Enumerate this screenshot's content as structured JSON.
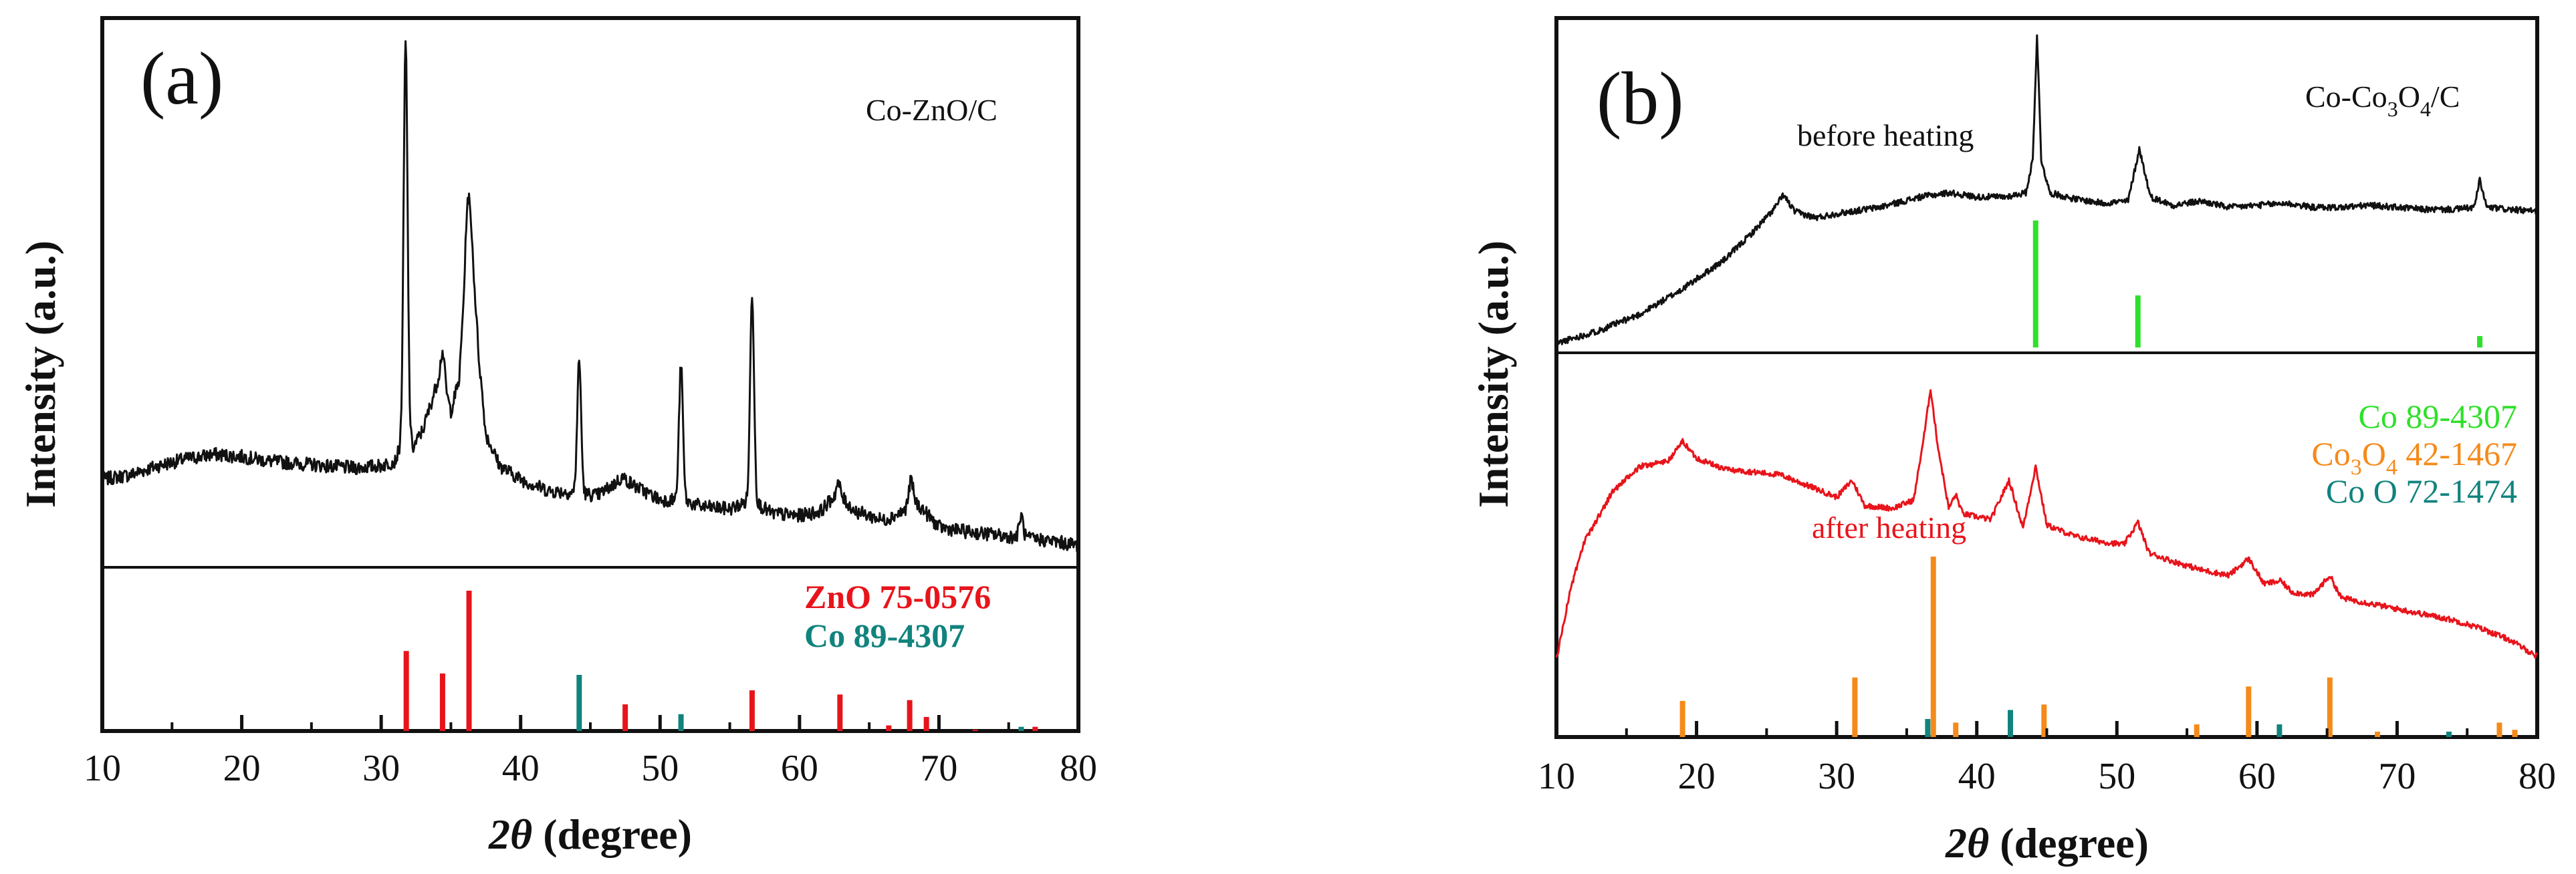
{
  "figure": {
    "colors": {
      "black": "#111111",
      "red": "#e8141b",
      "teal": "#11837d",
      "green": "#2fe02a",
      "orange": "#f58a1a"
    }
  },
  "chart_data": [
    {
      "type": "line",
      "panel_label": "(a)",
      "sample_label": "Co-ZnO/C",
      "xlabel_italic": "2θ",
      "xlabel_rest": " (degree)",
      "ylabel": "Intensity (a.u.)",
      "xlim": [
        10,
        80
      ],
      "xticks": [
        10,
        20,
        30,
        40,
        50,
        60,
        70,
        80
      ],
      "xtick_labels": [
        "10",
        "20",
        "30",
        "40",
        "50",
        "60",
        "70",
        "80"
      ],
      "series": [
        {
          "name": "Co-ZnO/C",
          "color": "#111111",
          "points": [
            [
              10,
              0.36
            ],
            [
              12,
              0.38
            ],
            [
              14,
              0.42
            ],
            [
              16,
              0.45
            ],
            [
              18,
              0.47
            ],
            [
              20,
              0.46
            ],
            [
              22,
              0.44
            ],
            [
              24,
              0.43
            ],
            [
              26,
              0.42
            ],
            [
              28,
              0.41
            ],
            [
              30,
              0.42
            ],
            [
              31,
              0.44
            ],
            [
              31.8,
              0.58
            ],
            [
              32.3,
              0.5
            ],
            [
              33,
              0.58
            ],
            [
              34.1,
              0.8
            ],
            [
              34.5,
              0.78
            ],
            [
              35,
              0.66
            ],
            [
              35.6,
              0.8
            ],
            [
              36.1,
              1.36
            ],
            [
              36.5,
              1.4
            ],
            [
              37,
              0.9
            ],
            [
              37.5,
              0.56
            ],
            [
              38.5,
              0.42
            ],
            [
              40,
              0.36
            ],
            [
              42,
              0.31
            ],
            [
              44,
              0.3
            ],
            [
              45.5,
              0.29
            ],
            [
              46.5,
              0.33
            ],
            [
              47.3,
              0.37
            ],
            [
              48.2,
              0.33
            ],
            [
              50,
              0.27
            ],
            [
              51.5,
              0.27
            ],
            [
              53,
              0.24
            ],
            [
              55,
              0.23
            ],
            [
              56.6,
              0.27
            ],
            [
              58,
              0.21
            ],
            [
              60,
              0.2
            ],
            [
              61.5,
              0.22
            ],
            [
              62.7,
              0.3
            ],
            [
              64,
              0.22
            ],
            [
              66,
              0.18
            ],
            [
              67.5,
              0.22
            ],
            [
              68,
              0.28
            ],
            [
              68.8,
              0.23
            ],
            [
              70,
              0.15
            ],
            [
              72,
              0.13
            ],
            [
              75,
              0.11
            ],
            [
              78,
              0.09
            ],
            [
              80,
              0.07
            ]
          ],
          "peaks": [
            [
              31.75,
              2.28
            ],
            [
              34.4,
              0.92
            ],
            [
              36.25,
              1.6
            ],
            [
              44.2,
              0.88
            ],
            [
              51.5,
              0.86
            ],
            [
              56.6,
              1.18
            ],
            [
              62.8,
              0.34
            ],
            [
              68.0,
              0.36
            ],
            [
              75.9,
              0.2
            ]
          ]
        }
      ],
      "reference_annotation_1": "ZnO 75-0576",
      "reference_annotation_2": "Co  89-4307",
      "references": [
        {
          "name": "ZnO 75-0576",
          "color": "#e8141b",
          "peaks": [
            [
              31.8,
              0.57
            ],
            [
              34.4,
              0.41
            ],
            [
              36.3,
              1.0
            ],
            [
              47.5,
              0.19
            ],
            [
              56.6,
              0.29
            ],
            [
              62.9,
              0.26
            ],
            [
              66.4,
              0.04
            ],
            [
              67.9,
              0.22
            ],
            [
              69.1,
              0.1
            ],
            [
              72.6,
              0.01
            ],
            [
              76.9,
              0.03
            ]
          ]
        },
        {
          "name": "Co 89-4307",
          "color": "#11837d",
          "peaks": [
            [
              44.2,
              0.4
            ],
            [
              51.5,
              0.12
            ],
            [
              75.9,
              0.03
            ]
          ]
        }
      ]
    },
    {
      "type": "line",
      "panel_label": "(b)",
      "sample_label_parts": [
        "Co-Co",
        "3",
        "O",
        "4",
        "/C"
      ],
      "xlabel_italic": "2θ",
      "xlabel_rest": " (degree)",
      "ylabel": "Intensity (a.u.)",
      "xlim": [
        10,
        80
      ],
      "xticks": [
        10,
        20,
        30,
        40,
        50,
        60,
        70,
        80
      ],
      "xtick_labels": [
        "10",
        "20",
        "30",
        "40",
        "50",
        "60",
        "70",
        "80"
      ],
      "series": [
        {
          "name": "before heating",
          "color": "#111111",
          "points": [
            [
              10,
              0.02
            ],
            [
              13,
              0.08
            ],
            [
              16,
              0.16
            ],
            [
              19,
              0.28
            ],
            [
              22,
              0.42
            ],
            [
              24,
              0.55
            ],
            [
              25.5,
              0.66
            ],
            [
              26.2,
              0.73
            ],
            [
              27,
              0.65
            ],
            [
              28.5,
              0.62
            ],
            [
              30,
              0.64
            ],
            [
              33,
              0.67
            ],
            [
              36,
              0.72
            ],
            [
              38,
              0.74
            ],
            [
              40,
              0.72
            ],
            [
              42,
              0.72
            ],
            [
              43.5,
              0.74
            ],
            [
              44,
              0.9
            ],
            [
              44.3,
              1.5
            ],
            [
              44.6,
              0.9
            ],
            [
              45.2,
              0.74
            ],
            [
              47,
              0.71
            ],
            [
              49,
              0.69
            ],
            [
              50.8,
              0.7
            ],
            [
              51.6,
              0.95
            ],
            [
              52.4,
              0.72
            ],
            [
              54,
              0.68
            ],
            [
              56,
              0.7
            ],
            [
              58,
              0.67
            ],
            [
              60,
              0.68
            ],
            [
              62,
              0.69
            ],
            [
              64,
              0.67
            ],
            [
              66,
              0.67
            ],
            [
              68,
              0.68
            ],
            [
              70,
              0.67
            ],
            [
              72,
              0.66
            ],
            [
              74,
              0.66
            ],
            [
              75.5,
              0.67
            ],
            [
              75.9,
              0.8
            ],
            [
              76.4,
              0.67
            ],
            [
              78,
              0.66
            ],
            [
              80,
              0.65
            ]
          ],
          "peaks": []
        },
        {
          "name": "after heating",
          "color": "#e8141b",
          "points": [
            [
              10,
              0.08
            ],
            [
              11,
              0.33
            ],
            [
              12,
              0.5
            ],
            [
              14,
              0.68
            ],
            [
              16,
              0.77
            ],
            [
              18,
              0.79
            ],
            [
              19,
              0.86
            ],
            [
              20,
              0.8
            ],
            [
              22,
              0.76
            ],
            [
              24,
              0.75
            ],
            [
              26,
              0.74
            ],
            [
              28,
              0.7
            ],
            [
              30,
              0.66
            ],
            [
              31.1,
              0.72
            ],
            [
              32,
              0.63
            ],
            [
              34,
              0.62
            ],
            [
              35.5,
              0.65
            ],
            [
              36.3,
              0.9
            ],
            [
              36.7,
              1.05
            ],
            [
              37.2,
              0.85
            ],
            [
              38,
              0.62
            ],
            [
              38.5,
              0.67
            ],
            [
              39,
              0.6
            ],
            [
              41,
              0.58
            ],
            [
              42.3,
              0.72
            ],
            [
              43.3,
              0.55
            ],
            [
              44.2,
              0.77
            ],
            [
              45,
              0.56
            ],
            [
              47,
              0.52
            ],
            [
              49,
              0.5
            ],
            [
              50.5,
              0.49
            ],
            [
              51.5,
              0.57
            ],
            [
              52.3,
              0.46
            ],
            [
              54,
              0.43
            ],
            [
              56,
              0.4
            ],
            [
              58,
              0.38
            ],
            [
              59.4,
              0.44
            ],
            [
              60.5,
              0.35
            ],
            [
              61.7,
              0.36
            ],
            [
              62.5,
              0.32
            ],
            [
              64,
              0.31
            ],
            [
              65.2,
              0.38
            ],
            [
              66,
              0.3
            ],
            [
              68,
              0.28
            ],
            [
              70,
              0.26
            ],
            [
              72,
              0.24
            ],
            [
              74,
              0.22
            ],
            [
              76,
              0.19
            ],
            [
              78,
              0.15
            ],
            [
              80,
              0.09
            ]
          ],
          "peaks": []
        }
      ],
      "series_annotation_before": "before heating",
      "series_annotation_after": "after heating",
      "legend_co": "Co 89-4307",
      "legend_co3o4_parts": [
        "Co",
        "3",
        "O",
        "4",
        " 42-1467"
      ],
      "legend_coo": "Co O 72-1474",
      "references": [
        {
          "name": "Co 89-4307",
          "color": "#2fe02a",
          "peaks": [
            [
              44.2,
              1.0
            ],
            [
              51.5,
              0.41
            ],
            [
              75.9,
              0.09
            ]
          ]
        },
        {
          "name": "Co3O4 42-1467",
          "color": "#f58a1a",
          "peaks": [
            [
              19.0,
              0.2
            ],
            [
              31.3,
              0.33
            ],
            [
              36.9,
              1.0
            ],
            [
              38.5,
              0.08
            ],
            [
              44.8,
              0.18
            ],
            [
              55.7,
              0.07
            ],
            [
              59.4,
              0.28
            ],
            [
              65.2,
              0.33
            ],
            [
              68.6,
              0.03
            ],
            [
              77.3,
              0.08
            ],
            [
              78.4,
              0.04
            ]
          ]
        },
        {
          "name": "CoO 72-1474",
          "color": "#11837d",
          "peaks": [
            [
              36.5,
              0.1
            ],
            [
              42.4,
              0.15
            ],
            [
              61.6,
              0.07
            ],
            [
              73.7,
              0.03
            ]
          ]
        }
      ]
    }
  ]
}
